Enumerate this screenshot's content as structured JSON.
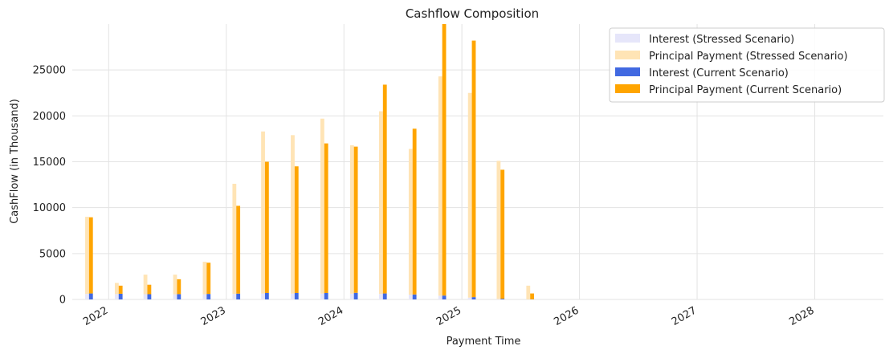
{
  "chart_data": {
    "type": "bar",
    "title": "Cashflow Composition",
    "xlabel": "Payment Time",
    "ylabel": "CashFlow (in Thousand)",
    "ylim": [
      0,
      30000
    ],
    "xlim": [
      "2021-09-10",
      "2028-08-01"
    ],
    "x_ticks": [
      {
        "date": "2022-01-01",
        "label": "2022"
      },
      {
        "date": "2023-01-01",
        "label": "2023"
      },
      {
        "date": "2024-01-01",
        "label": "2024"
      },
      {
        "date": "2025-01-01",
        "label": "2025"
      },
      {
        "date": "2026-01-01",
        "label": "2026"
      },
      {
        "date": "2027-01-01",
        "label": "2027"
      },
      {
        "date": "2028-01-01",
        "label": "2028"
      }
    ],
    "y_ticks": [
      0,
      5000,
      10000,
      15000,
      20000,
      25000
    ],
    "grid": true,
    "legend_position": "top-right",
    "x": [
      "2021-11-01",
      "2022-02-01",
      "2022-05-01",
      "2022-08-01",
      "2022-11-01",
      "2023-02-01",
      "2023-05-01",
      "2023-08-01",
      "2023-11-01",
      "2024-02-01",
      "2024-05-01",
      "2024-08-01",
      "2024-11-01",
      "2025-02-01",
      "2025-05-01",
      "2025-08-01"
    ],
    "series": [
      {
        "name": "Interest (Stressed Scenario)",
        "color": "#e6e6fa",
        "stack": "stressed",
        "values": [
          600,
          580,
          570,
          560,
          560,
          600,
          650,
          640,
          640,
          630,
          600,
          520,
          400,
          200,
          50,
          10
        ]
      },
      {
        "name": "Principal Payment (Stressed Scenario)",
        "color": "#ffe4b5",
        "stack": "stressed",
        "values": [
          8400,
          1220,
          2130,
          2140,
          3540,
          12000,
          17650,
          17260,
          19060,
          16170,
          19900,
          15880,
          23900,
          22300,
          15050,
          1490
        ]
      },
      {
        "name": "Interest (Current Scenario)",
        "color": "#4169e1",
        "stack": "current",
        "values": [
          650,
          620,
          570,
          580,
          600,
          630,
          700,
          700,
          700,
          720,
          650,
          540,
          420,
          250,
          80,
          20
        ]
      },
      {
        "name": "Principal Payment (Current Scenario)",
        "color": "#ffa500",
        "stack": "current",
        "values": [
          8300,
          880,
          1030,
          1620,
          3400,
          9570,
          14300,
          13800,
          16300,
          15930,
          22750,
          18060,
          29580,
          27950,
          14050,
          630
        ]
      }
    ]
  }
}
